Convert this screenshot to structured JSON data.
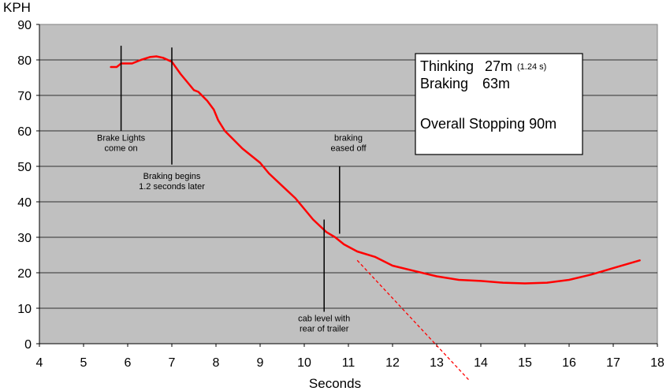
{
  "chart_data": {
    "type": "line",
    "ylabel": "KPH",
    "xlabel": "Seconds",
    "xlim": [
      4,
      18
    ],
    "ylim": [
      0,
      90
    ],
    "x_ticks": [
      "4",
      "5",
      "6",
      "7",
      "8",
      "9",
      "10",
      "11",
      "12",
      "13",
      "14",
      "15",
      "16",
      "17",
      "18"
    ],
    "y_ticks": [
      "0",
      "10",
      "20",
      "30",
      "40",
      "50",
      "60",
      "70",
      "80",
      "90"
    ],
    "grid": true,
    "series": [
      {
        "color": "#ff0000",
        "x": [
          5.62,
          5.75,
          5.8,
          5.85,
          6.0,
          6.1,
          6.3,
          6.5,
          6.65,
          6.8,
          7.0,
          7.2,
          7.4,
          7.5,
          7.6,
          7.8,
          7.95,
          8.05,
          8.2,
          8.4,
          8.6,
          8.8,
          9.0,
          9.2,
          9.5,
          9.8,
          10.0,
          10.2,
          10.5,
          10.7,
          10.9,
          11.2,
          11.6,
          12.0,
          12.5,
          13.0,
          13.5,
          14.0,
          14.5,
          15.0,
          15.5,
          16.0,
          16.5,
          17.0,
          17.6
        ],
        "y": [
          78,
          78,
          78.5,
          79,
          79,
          79,
          80,
          80.8,
          81,
          80.6,
          79.5,
          76,
          73,
          71.5,
          71,
          68.5,
          66,
          63,
          60,
          57.5,
          55,
          53,
          51,
          48,
          44.5,
          41,
          38,
          35,
          31.5,
          30,
          28,
          26,
          24.5,
          22,
          20.5,
          19,
          18,
          17.7,
          17.2,
          17,
          17.2,
          18,
          19.5,
          21.3,
          23.5
        ]
      }
    ],
    "projection": {
      "x": [
        11.2,
        13.75
      ],
      "y": [
        23.5,
        -10.5
      ],
      "color": "#ff0000"
    },
    "markers": [
      {
        "x": 5.85,
        "y_from": 60,
        "y_to": 84
      },
      {
        "x": 7.0,
        "y_from": 50.5,
        "y_to": 83.5
      },
      {
        "x": 10.45,
        "y_from": 9,
        "y_to": 35
      },
      {
        "x": 10.8,
        "y_from": 31,
        "y_to": 50
      }
    ],
    "annotations": [
      {
        "lines": [
          "Brake Lights",
          "come on"
        ],
        "x": 5.85,
        "y": 57.2
      },
      {
        "lines": [
          "Braking begins",
          "1.2 seconds later"
        ],
        "x": 7.0,
        "y": 46.5
      },
      {
        "lines": [
          "braking",
          "eased off"
        ],
        "x": 11.0,
        "y": 57.2
      },
      {
        "lines": [
          "cab level with",
          "rear of trailer"
        ],
        "x": 10.45,
        "y": 6.3
      }
    ],
    "summary_box": {
      "thinking_label": "Thinking",
      "thinking_value": "27m",
      "thinking_note": "(1.24 s)",
      "braking_label": "Braking",
      "braking_value": "63m",
      "overall": "Overall Stopping 90m"
    }
  }
}
